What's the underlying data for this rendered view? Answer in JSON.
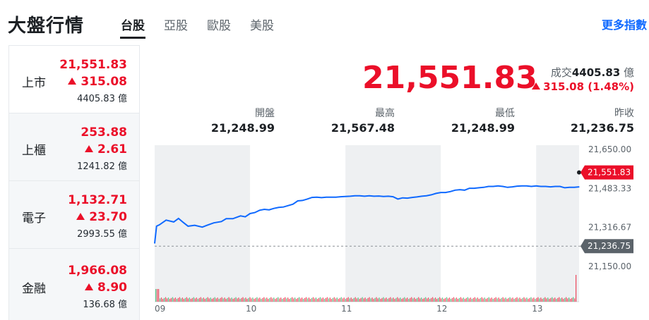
{
  "header": {
    "title": "大盤行情",
    "tabs": [
      {
        "label": "台股",
        "active": true
      },
      {
        "label": "亞股",
        "active": false
      },
      {
        "label": "歐股",
        "active": false
      },
      {
        "label": "美股",
        "active": false
      }
    ],
    "more_link": "更多指數"
  },
  "sidebar": {
    "items": [
      {
        "name": "上市",
        "price": "21,551.83",
        "change": "315.08",
        "volume": "4405.83 億",
        "active": true
      },
      {
        "name": "上櫃",
        "price": "253.88",
        "change": "2.61",
        "volume": "1241.82 億",
        "active": false
      },
      {
        "name": "電子",
        "price": "1,132.71",
        "change": "23.70",
        "volume": "2993.55 億",
        "active": false
      },
      {
        "name": "金融",
        "price": "1,966.08",
        "change": "8.90",
        "volume": "136.68 億",
        "active": false
      }
    ]
  },
  "quote": {
    "price": "21,551.83",
    "volume_label": "成交",
    "volume_value": "4405.83",
    "volume_unit": "億",
    "change": "315.08 (1.48%)",
    "colors": {
      "up": "#eb0f29",
      "line": "#0f69ff"
    }
  },
  "stats": [
    {
      "label": "開盤",
      "value": "21,248.99"
    },
    {
      "label": "最高",
      "value": "21,567.48"
    },
    {
      "label": "最低",
      "value": "21,248.99"
    },
    {
      "label": "昨收",
      "value": "21,236.75"
    }
  ],
  "chart_data": {
    "type": "line",
    "x_ticks": [
      "09",
      "10",
      "11",
      "12",
      "13"
    ],
    "y_ticks": [
      "21,650.00",
      "21,483.33",
      "21,316.67",
      "21,150.00"
    ],
    "y_tick_values": [
      21650,
      21483.33,
      21316.67,
      21150
    ],
    "ylim": [
      21150,
      21650
    ],
    "prev_close": 21236.75,
    "prev_close_label": "21,236.75",
    "last_price": 21551.83,
    "last_price_label": "21,551.83",
    "series": [
      {
        "x": [
          0.0,
          0.02,
          0.05,
          0.12,
          0.2,
          0.25,
          0.3,
          0.35,
          0.42,
          0.5,
          0.55,
          0.62,
          0.7,
          0.75,
          0.82,
          0.9,
          0.95,
          1.0,
          1.05,
          1.1,
          1.15,
          1.2,
          1.25,
          1.3,
          1.35,
          1.4,
          1.45,
          1.5,
          1.55,
          1.6,
          1.65,
          1.7,
          1.75,
          1.8,
          1.85,
          1.9,
          1.95,
          2.0,
          2.05,
          2.1,
          2.15,
          2.2,
          2.25,
          2.3,
          2.35,
          2.4,
          2.45,
          2.5,
          2.55,
          2.6,
          2.65,
          2.7,
          2.75,
          2.8,
          2.85,
          2.9,
          2.95,
          3.0,
          3.05,
          3.1,
          3.15,
          3.2,
          3.25,
          3.3,
          3.35,
          3.4,
          3.45,
          3.5,
          3.55,
          3.6,
          3.65,
          3.7,
          3.75,
          3.8,
          3.85,
          3.9,
          3.95,
          4.0,
          4.05,
          4.1,
          4.15,
          4.2,
          4.25,
          4.3,
          4.35,
          4.4,
          4.45
        ],
        "values": [
          21248.99,
          21322,
          21328,
          21348,
          21340,
          21355,
          21338,
          21322,
          21326,
          21318,
          21326,
          21336,
          21342,
          21354,
          21354,
          21366,
          21362,
          21376,
          21380,
          21390,
          21394,
          21392,
          21398,
          21402,
          21404,
          21410,
          21416,
          21430,
          21432,
          21438,
          21445,
          21446,
          21444,
          21446,
          21446,
          21446,
          21448,
          21449,
          21450,
          21452,
          21452,
          21450,
          21452,
          21450,
          21451,
          21449,
          21450,
          21448,
          21438,
          21443,
          21442,
          21445,
          21447,
          21450,
          21452,
          21456,
          21462,
          21466,
          21466,
          21470,
          21476,
          21478,
          21476,
          21484,
          21484,
          21486,
          21488,
          21492,
          21492,
          21494,
          21492,
          21488,
          21490,
          21493,
          21494,
          21494,
          21492,
          21494,
          21492,
          21492,
          21490,
          21492,
          21492,
          21486,
          21488,
          21488,
          21490
        ]
      }
    ]
  }
}
